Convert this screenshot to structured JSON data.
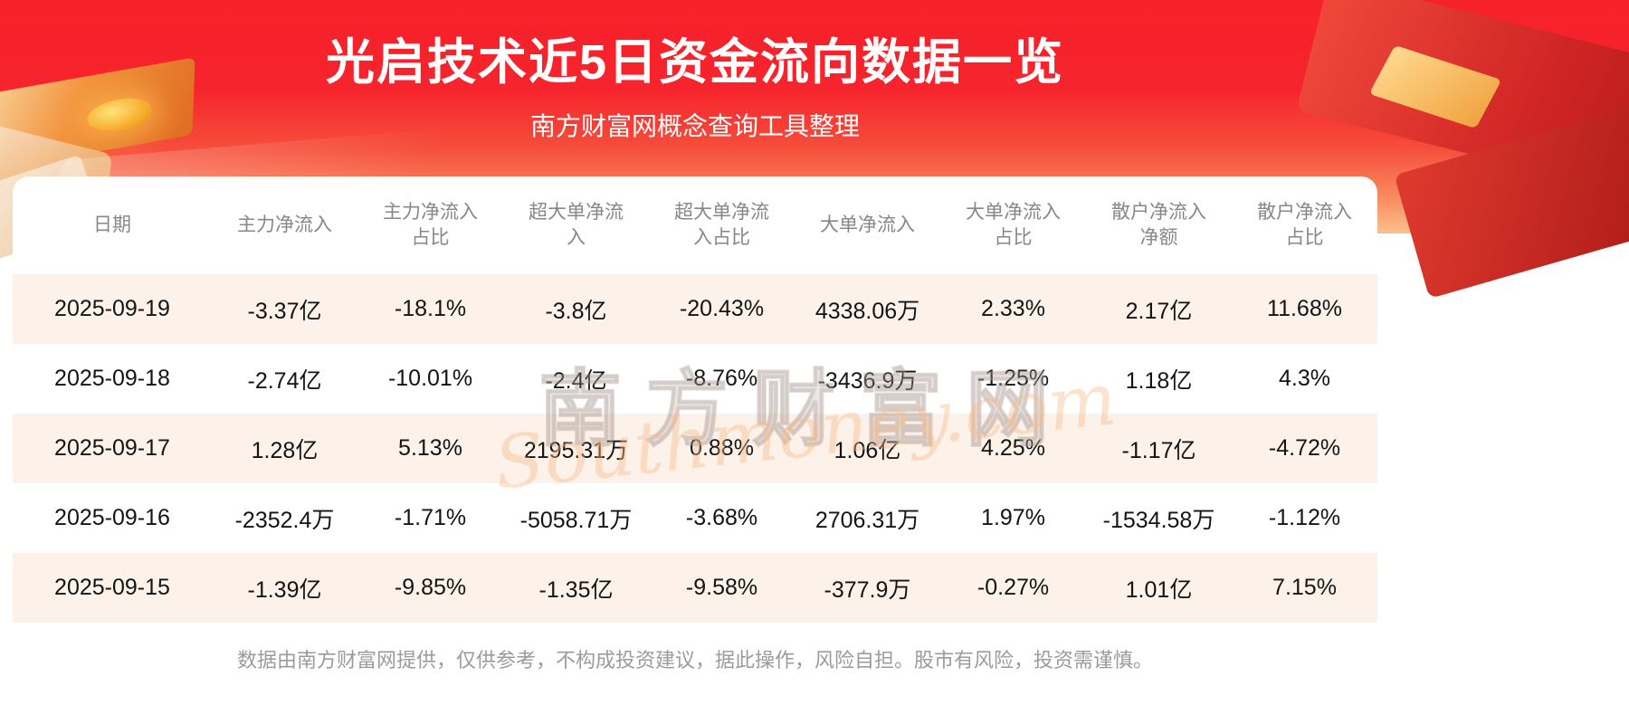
{
  "header": {
    "title": "光启技术近5日资金流向数据一览",
    "subtitle": "南方财富网概念查询工具整理"
  },
  "watermark": {
    "cn": "南方财富网",
    "en": "Southmoney.com"
  },
  "footer": {
    "disclaimer": "数据由南方财富网提供，仅供参考，不构成投资建议，据此操作，风险自担。股市有风险，投资需谨慎。"
  },
  "colors": {
    "header_red_top": "#f7212a",
    "header_red_fade": "#fbc08e",
    "row_stripe": "#fcf2ea",
    "header_text": "#878787",
    "cell_text": "#141414",
    "title_text": "#ffffff",
    "disclaimer_text": "#9b9b9b"
  },
  "chart_data": {
    "type": "table",
    "title": "光启技术近5日资金流向数据一览",
    "columns": [
      "日期",
      "主力净流入",
      "主力净流入占比",
      "超大单净流入",
      "超大单净流入占比",
      "大单净流入",
      "大单净流入占比",
      "散户净流入净额",
      "散户净流入占比"
    ],
    "column_display": [
      "日期",
      "主力净流入",
      "主力净流入\n占比",
      "超大单净流\n入",
      "超大单净流\n入占比",
      "大单净流入",
      "大单净流入\n占比",
      "散户净流入\n净额",
      "散户净流入\n占比"
    ],
    "rows": [
      [
        "2025-09-19",
        "-3.37亿",
        "-18.1%",
        "-3.8亿",
        "-20.43%",
        "4338.06万",
        "2.33%",
        "2.17亿",
        "11.68%"
      ],
      [
        "2025-09-18",
        "-2.74亿",
        "-10.01%",
        "-2.4亿",
        "-8.76%",
        "-3436.9万",
        "-1.25%",
        "1.18亿",
        "4.3%"
      ],
      [
        "2025-09-17",
        "1.28亿",
        "5.13%",
        "2195.31万",
        "0.88%",
        "1.06亿",
        "4.25%",
        "-1.17亿",
        "-4.72%"
      ],
      [
        "2025-09-16",
        "-2352.4万",
        "-1.71%",
        "-5058.71万",
        "-3.68%",
        "2706.31万",
        "1.97%",
        "-1534.58万",
        "-1.12%"
      ],
      [
        "2025-09-15",
        "-1.39亿",
        "-9.85%",
        "-1.35亿",
        "-9.58%",
        "-377.9万",
        "-0.27%",
        "1.01亿",
        "7.15%"
      ]
    ]
  }
}
